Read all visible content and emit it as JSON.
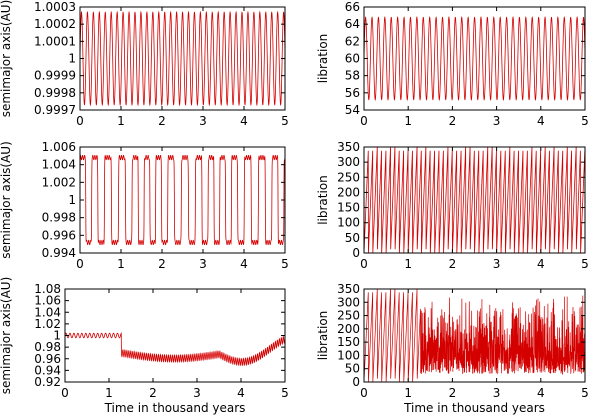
{
  "figure": {
    "series_color": "#d40000",
    "frame_color": "#000000"
  },
  "chart_data": [
    {
      "type": "line",
      "pattern": "osc",
      "ybase": 1.0,
      "yamp": 0.00027,
      "ylabel": "semimajor axis(AU)",
      "xlabel": "",
      "xlim": [
        0,
        5
      ],
      "ylim": [
        0.9997,
        1.0003
      ],
      "xticks": [
        0,
        1,
        2,
        3,
        4,
        5
      ],
      "yticks": [
        0.9997,
        0.9998,
        0.9999,
        1.0,
        1.0001,
        1.0002,
        1.0003
      ],
      "ytick_labels": [
        "0.9997",
        "0.9998",
        "0.9999",
        "1",
        "1.0001",
        "1.0002",
        "1.0003"
      ]
    },
    {
      "type": "line",
      "pattern": "osc",
      "ybase": 60,
      "yamp": 4.8,
      "ylabel": "libration",
      "xlabel": "",
      "xlim": [
        0,
        5
      ],
      "ylim": [
        54,
        66
      ],
      "xticks": [
        0,
        1,
        2,
        3,
        4,
        5
      ],
      "yticks": [
        54,
        56,
        58,
        60,
        62,
        64,
        66
      ],
      "ytick_labels": [
        "54",
        "56",
        "58",
        "60",
        "62",
        "64",
        "66"
      ]
    },
    {
      "type": "line",
      "pattern": "square",
      "ybase": 1.0,
      "yamp": 0.0048,
      "ylabel": "semimajor axis(AU)",
      "xlabel": "",
      "xlim": [
        0,
        5
      ],
      "ylim": [
        0.994,
        1.006
      ],
      "xticks": [
        0,
        1,
        2,
        3,
        4,
        5
      ],
      "yticks": [
        0.994,
        0.996,
        0.998,
        1.0,
        1.002,
        1.004,
        1.006
      ],
      "ytick_labels": [
        "0.994",
        "0.996",
        "0.998",
        "1",
        "1.002",
        "1.004",
        "1.006"
      ]
    },
    {
      "type": "line",
      "pattern": "circ",
      "ybase": 0,
      "yamp": 350,
      "ylabel": "libration",
      "xlabel": "",
      "xlim": [
        0,
        5
      ],
      "ylim": [
        0,
        350
      ],
      "xticks": [
        0,
        1,
        2,
        3,
        4,
        5
      ],
      "yticks": [
        0,
        50,
        100,
        150,
        200,
        250,
        300,
        350
      ],
      "ytick_labels": [
        "0",
        "50",
        "100",
        "150",
        "200",
        "250",
        "300",
        "350"
      ]
    },
    {
      "type": "line",
      "pattern": "drift",
      "ybase": 1.0,
      "yamp": 0.01,
      "transition_x": 1.28,
      "ylabel": "semimajor axis(AU)",
      "xlabel": "Time in thousand years",
      "xlim": [
        0,
        5
      ],
      "ylim": [
        0.92,
        1.08
      ],
      "xticks": [
        0,
        1,
        2,
        3,
        4,
        5
      ],
      "yticks": [
        0.92,
        0.94,
        0.96,
        0.98,
        1.0,
        1.02,
        1.04,
        1.06,
        1.08
      ],
      "ytick_labels": [
        "0.92",
        "0.94",
        "0.96",
        "0.98",
        "1",
        "1.02",
        "1.04",
        "1.06",
        "1.08"
      ]
    },
    {
      "type": "line",
      "pattern": "chaos",
      "ybase": 0,
      "yamp": 350,
      "transition_x": 1.28,
      "ylabel": "libration",
      "xlabel": "Time in thousand years",
      "xlim": [
        0,
        5
      ],
      "ylim": [
        0,
        350
      ],
      "xticks": [
        0,
        1,
        2,
        3,
        4,
        5
      ],
      "yticks": [
        0,
        50,
        100,
        150,
        200,
        250,
        300,
        350
      ],
      "ytick_labels": [
        "0",
        "50",
        "100",
        "150",
        "200",
        "250",
        "300",
        "350"
      ]
    }
  ]
}
